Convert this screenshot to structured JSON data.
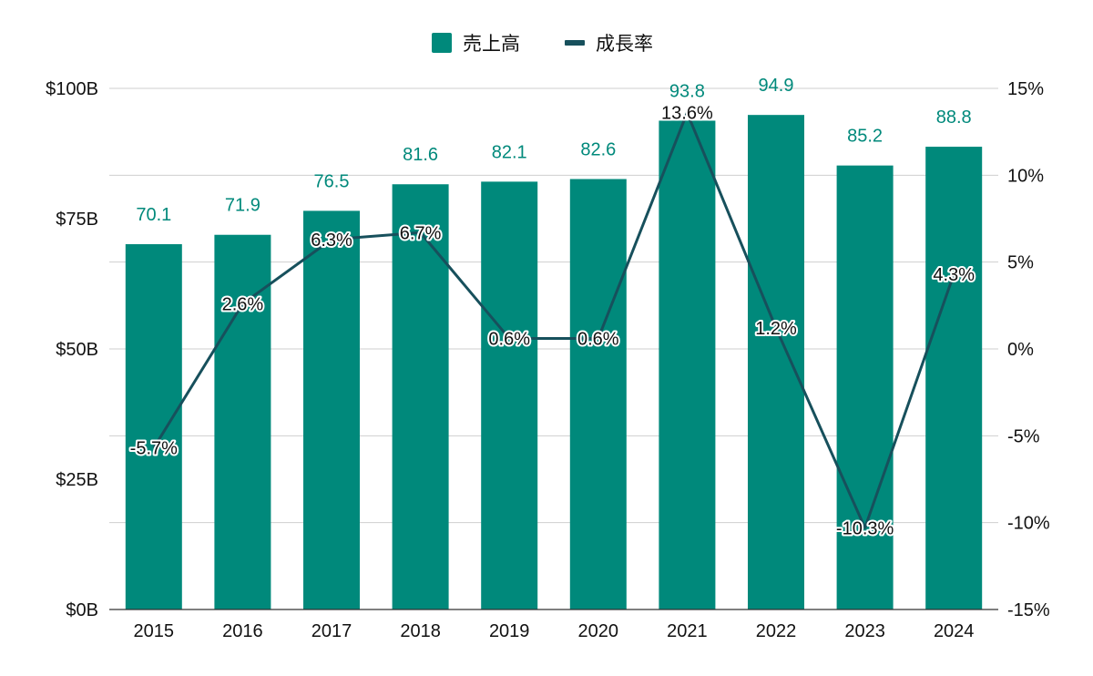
{
  "chart_data": {
    "type": "bar",
    "categories": [
      "2015",
      "2016",
      "2017",
      "2018",
      "2019",
      "2020",
      "2021",
      "2022",
      "2023",
      "2024"
    ],
    "series": [
      {
        "name": "売上高",
        "type": "bar",
        "axis": "left",
        "color": "#00897b",
        "values": [
          70.1,
          71.9,
          76.5,
          81.6,
          82.1,
          82.6,
          93.8,
          94.9,
          85.2,
          88.8
        ],
        "labels": [
          "70.1",
          "71.9",
          "76.5",
          "81.6",
          "82.1",
          "82.6",
          "93.8",
          "94.9",
          "85.2",
          "88.8"
        ]
      },
      {
        "name": "成長率",
        "type": "line",
        "axis": "right",
        "color": "#17505c",
        "values": [
          -5.7,
          2.6,
          6.3,
          6.7,
          0.6,
          0.6,
          13.6,
          1.2,
          -10.3,
          4.3
        ],
        "labels": [
          "-5.7%",
          "2.6%",
          "6.3%",
          "6.7%",
          "0.6%",
          "0.6%",
          "13.6%",
          "1.2%",
          "-10.3%",
          "4.3%"
        ]
      }
    ],
    "y_left": {
      "range": [
        0,
        100
      ],
      "ticks": [
        0,
        25,
        50,
        75,
        100
      ],
      "tick_labels": [
        "$0B",
        "$25B",
        "$50B",
        "$75B",
        "$100B"
      ]
    },
    "y_right": {
      "range": [
        -15,
        15
      ],
      "ticks": [
        -15,
        -10,
        -5,
        0,
        5,
        10,
        15
      ],
      "tick_labels": [
        "-15%",
        "-10%",
        "-5%",
        "0%",
        "5%",
        "10%",
        "15%"
      ]
    },
    "grid": true,
    "legend_position": "top-center",
    "title": "",
    "xlabel": "",
    "ylabel": ""
  }
}
